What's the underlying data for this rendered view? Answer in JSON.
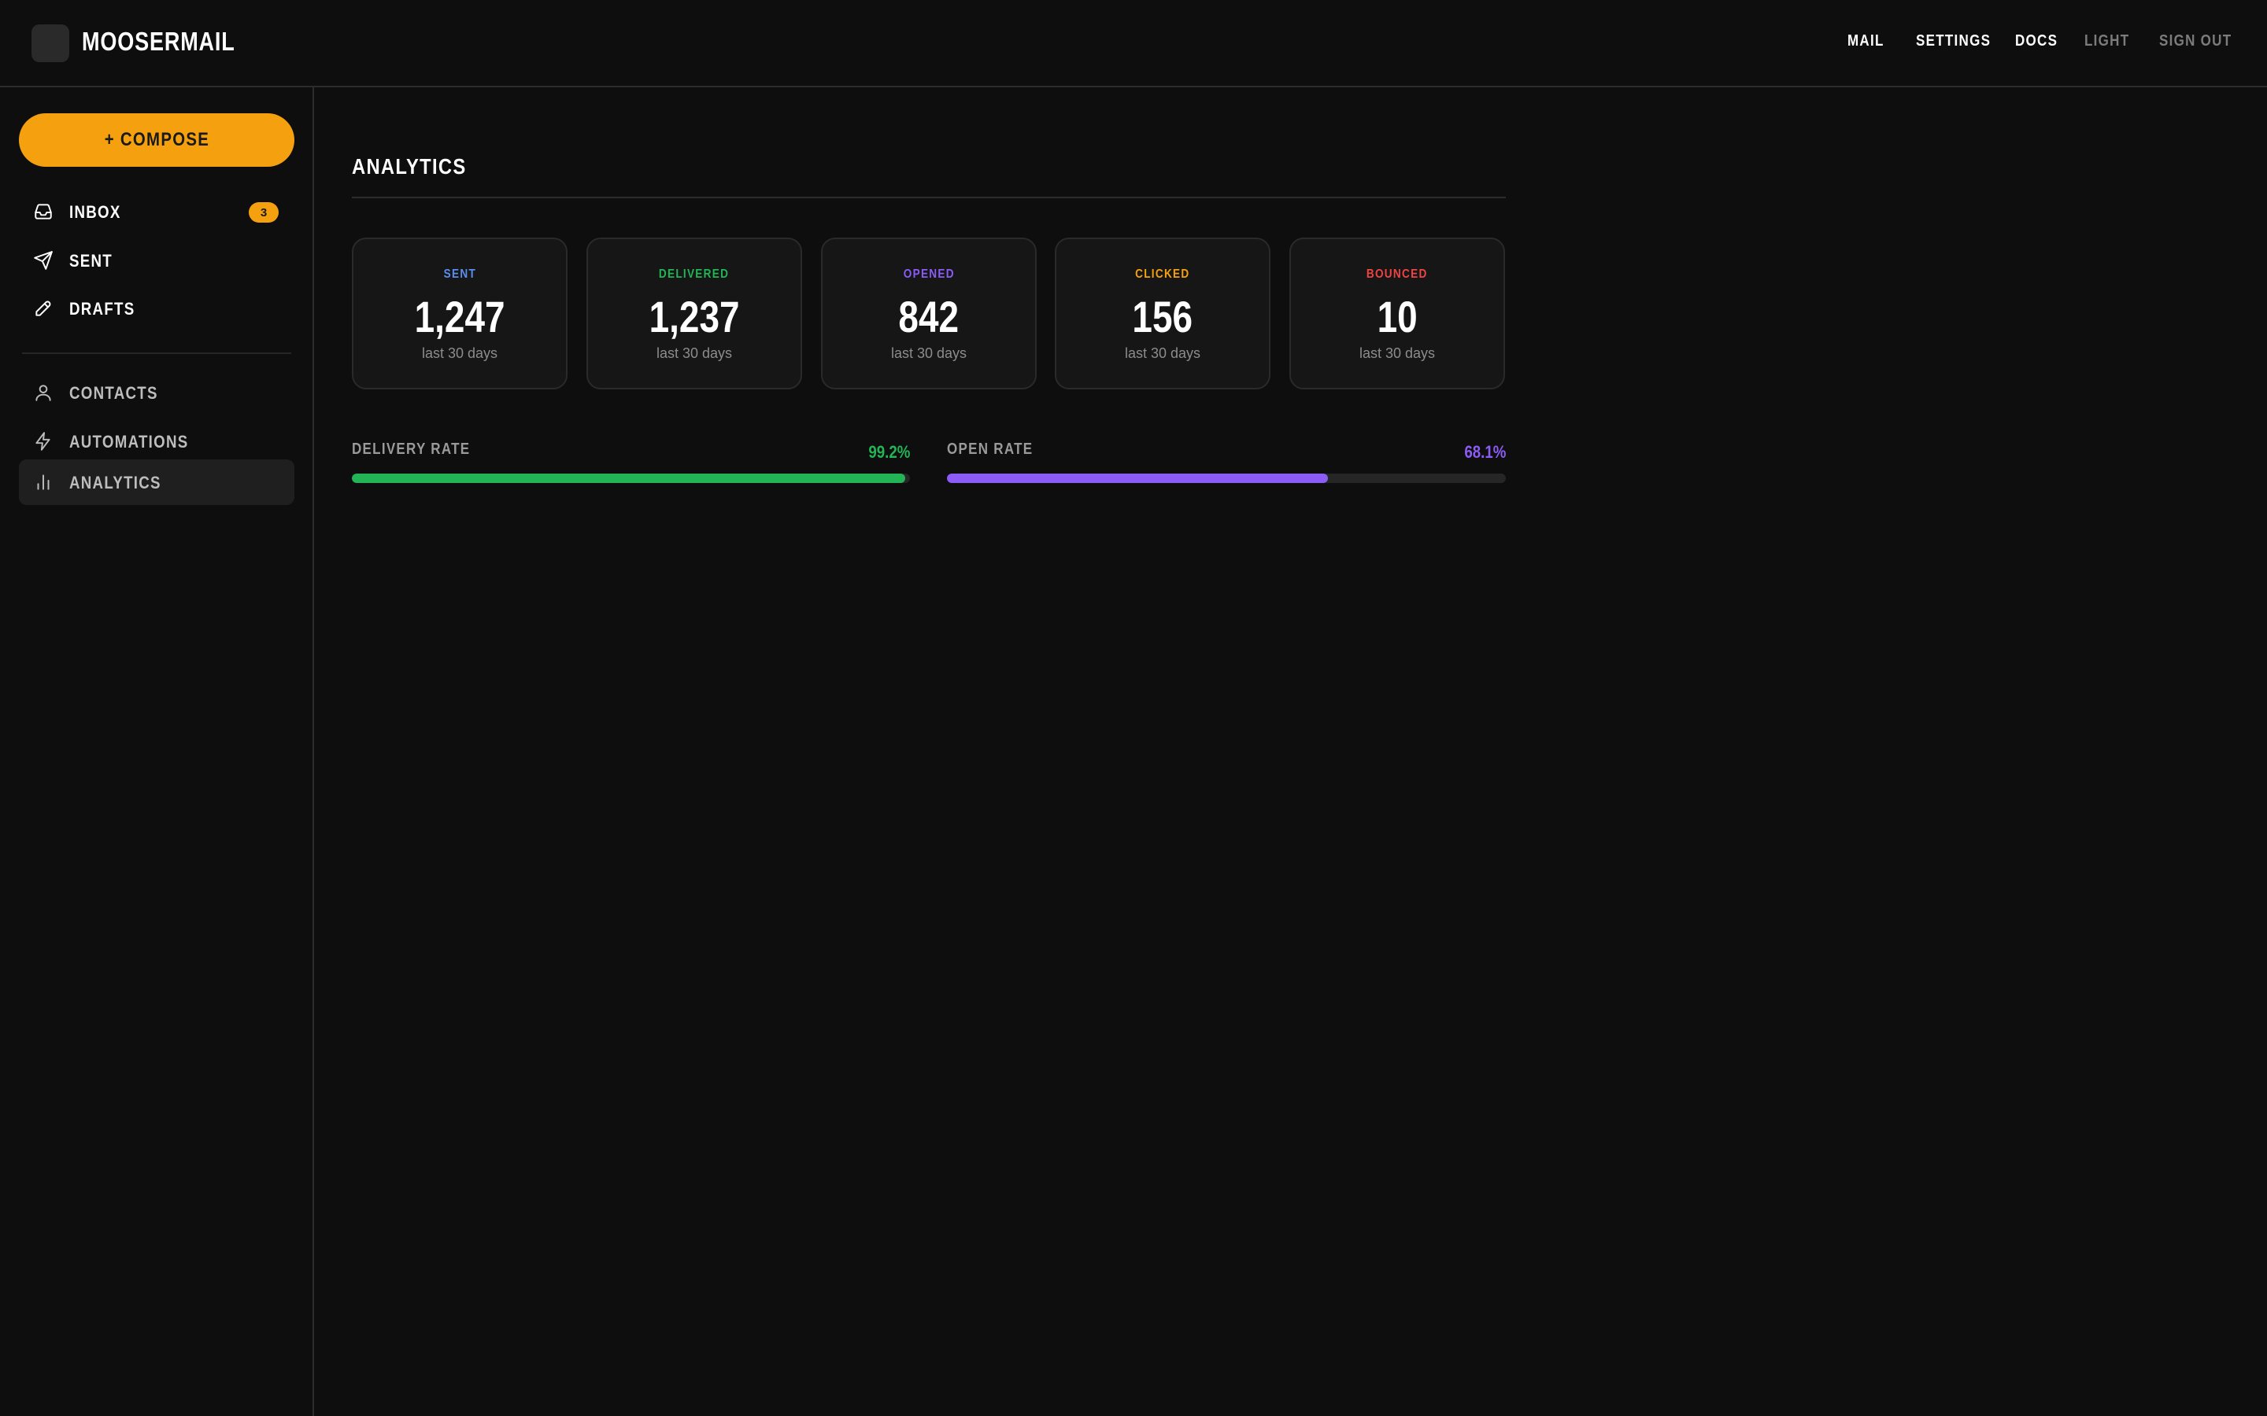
{
  "header": {
    "brand": "MOOSERMAIL",
    "nav": [
      {
        "label": "MAIL"
      },
      {
        "label": "SETTINGS"
      },
      {
        "label": "DOCS"
      },
      {
        "label": "LIGHT"
      },
      {
        "label": "SIGN OUT"
      }
    ]
  },
  "sidebar": {
    "compose_label": "+ COMPOSE",
    "items": [
      {
        "label": "INBOX",
        "icon": "inbox-icon",
        "badge": "3"
      },
      {
        "label": "SENT",
        "icon": "send-icon"
      },
      {
        "label": "DRAFTS",
        "icon": "pencil-icon"
      },
      {
        "label": "CONTACTS",
        "icon": "user-icon"
      },
      {
        "label": "AUTOMATIONS",
        "icon": "lightning-icon"
      },
      {
        "label": "ANALYTICS",
        "icon": "bar-chart-icon",
        "active": true
      }
    ]
  },
  "main": {
    "title": "ANALYTICS",
    "stats": [
      {
        "label": "SENT",
        "value": "1,247",
        "sub": "last 30 days",
        "color": "#5b8def"
      },
      {
        "label": "DELIVERED",
        "value": "1,237",
        "sub": "last 30 days",
        "color": "#22b455"
      },
      {
        "label": "OPENED",
        "value": "842",
        "sub": "last 30 days",
        "color": "#8b5cf6"
      },
      {
        "label": "CLICKED",
        "value": "156",
        "sub": "last 30 days",
        "color": "#f5a10f"
      },
      {
        "label": "BOUNCED",
        "value": "10",
        "sub": "last 30 days",
        "color": "#ef4444"
      }
    ],
    "rates": [
      {
        "label": "DELIVERY RATE",
        "value": "99.2%",
        "percent": 99.2,
        "color": "#22b455"
      },
      {
        "label": "OPEN RATE",
        "value": "68.1%",
        "percent": 68.1,
        "color": "#8b5cf6"
      }
    ]
  },
  "colors": {
    "accent": "#f5a10f",
    "background": "#0e0e0e"
  }
}
